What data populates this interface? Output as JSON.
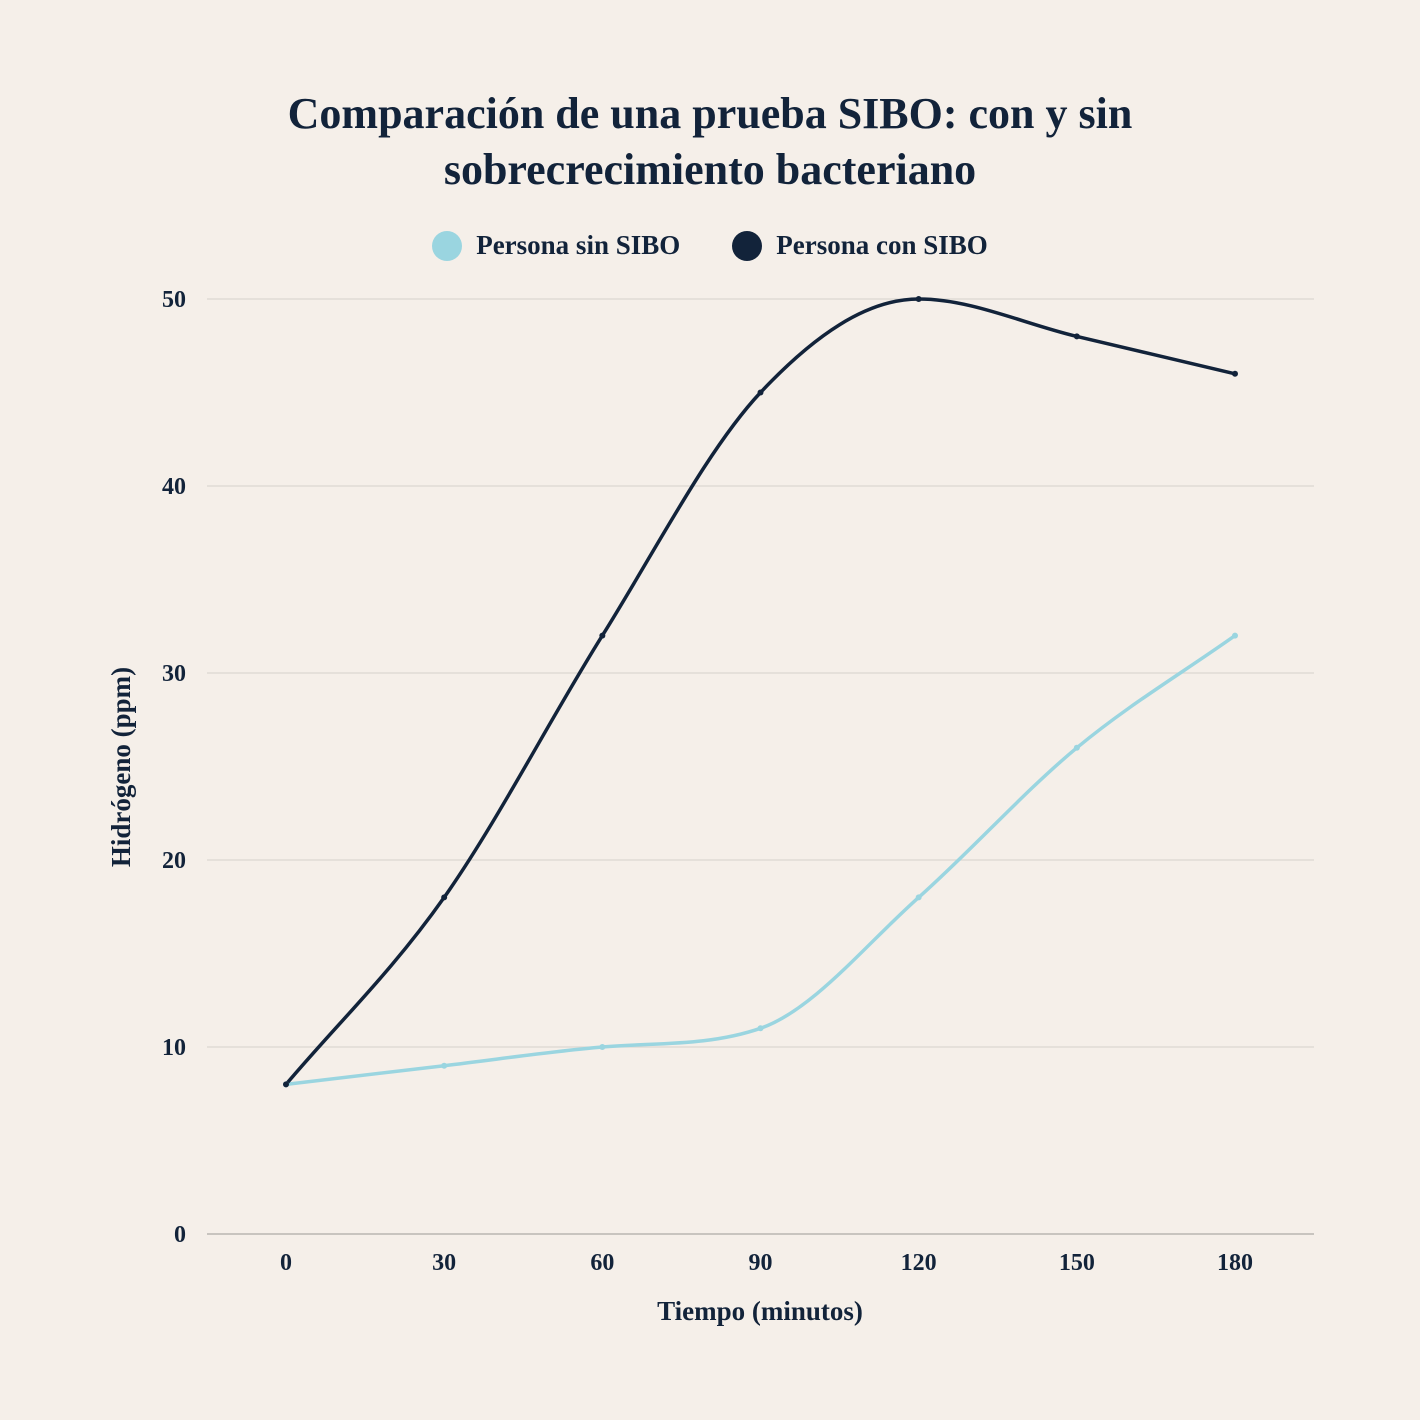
{
  "chart_data": {
    "type": "line",
    "title": [
      "Comparación de una prueba SIBO: con y sin",
      "sobrecrecimiento bacteriano"
    ],
    "xlabel": "Tiempo (minutos)",
    "ylabel": "Hidrógeno (ppm)",
    "x": [
      0,
      30,
      60,
      90,
      120,
      150,
      180
    ],
    "x_tick_labels": [
      "0",
      "30",
      "60",
      "90",
      "120",
      "150",
      "180"
    ],
    "y_ticks": [
      0,
      10,
      20,
      30,
      40,
      50
    ],
    "ylim": [
      0,
      50
    ],
    "grid": true,
    "legend_position": "top-center",
    "series": [
      {
        "name": "Persona sin SIBO",
        "color": "#9ad5e0",
        "values": [
          8,
          9,
          10,
          11,
          18,
          26,
          32
        ]
      },
      {
        "name": "Persona con SIBO",
        "color": "#12233a",
        "values": [
          8,
          18,
          32,
          45,
          50,
          48,
          46
        ]
      }
    ]
  }
}
